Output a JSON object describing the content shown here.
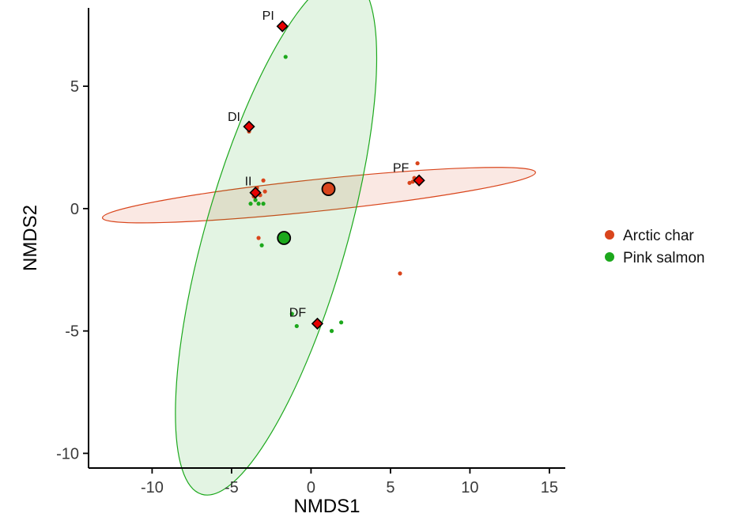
{
  "chart_data": {
    "type": "scatter",
    "title": "",
    "xlabel": "NMDS1",
    "ylabel": "NMDS2",
    "xlim": [
      -14,
      16
    ],
    "ylim": [
      -10.6,
      8.2
    ],
    "x_ticks": [
      -10,
      -5,
      0,
      5,
      10,
      15
    ],
    "x_tick_labels": [
      "-10",
      "-5",
      "0",
      "5",
      "10",
      "15"
    ],
    "y_ticks": [
      -10,
      -5,
      0,
      5
    ],
    "y_tick_labels": [
      "-10",
      "-5",
      "0",
      "5"
    ],
    "grid": false,
    "legend_position": "right",
    "series": [
      {
        "name": "Arctic char",
        "color": "#d9451c",
        "points": [
          {
            "x": -3.9,
            "y": 3.15
          },
          {
            "x": -3.5,
            "y": 0.7
          },
          {
            "x": -3.4,
            "y": 0.85
          },
          {
            "x": -3.2,
            "y": 0.55
          },
          {
            "x": -3.0,
            "y": 1.15
          },
          {
            "x": -2.9,
            "y": 0.7
          },
          {
            "x": -3.6,
            "y": 0.5
          },
          {
            "x": -3.3,
            "y": -1.2
          },
          {
            "x": 6.2,
            "y": 1.05
          },
          {
            "x": 6.5,
            "y": 1.25
          },
          {
            "x": 6.7,
            "y": 1.85
          },
          {
            "x": 6.9,
            "y": 1.2
          },
          {
            "x": 6.4,
            "y": 1.1
          },
          {
            "x": 5.6,
            "y": -2.65
          }
        ],
        "centroid": {
          "x": 1.1,
          "y": 0.8
        },
        "ellipse": {
          "cx": 0.5,
          "cy": 0.55,
          "rx": 27.4,
          "ry": 2.6,
          "angle_deg": 6
        }
      },
      {
        "name": "Pink salmon",
        "color": "#1ca81c",
        "points": [
          {
            "x": -1.6,
            "y": 6.2
          },
          {
            "x": -3.8,
            "y": 0.2
          },
          {
            "x": -3.3,
            "y": 0.2
          },
          {
            "x": -3.5,
            "y": 0.35
          },
          {
            "x": -3.0,
            "y": 0.2
          },
          {
            "x": -3.1,
            "y": -1.5
          },
          {
            "x": -0.9,
            "y": -4.8
          },
          {
            "x": 1.3,
            "y": -5.0
          },
          {
            "x": 1.9,
            "y": -4.65
          },
          {
            "x": -1.2,
            "y": -4.3
          }
        ],
        "centroid": {
          "x": -1.7,
          "y": -1.2
        },
        "ellipse": {
          "cx": -2.2,
          "cy": -1.1,
          "rx": 8.9,
          "ry": 44.0,
          "angle_deg": -16
        }
      }
    ],
    "centroids": [
      {
        "label": "PI",
        "x": -1.8,
        "y": 7.45,
        "color": "#e60000"
      },
      {
        "label": "DI",
        "x": -3.9,
        "y": 3.35,
        "color": "#e60000"
      },
      {
        "label": "II",
        "x": -3.5,
        "y": 0.65,
        "color": "#e60000"
      },
      {
        "label": "PF",
        "x": 6.8,
        "y": 1.15,
        "color": "#e60000"
      },
      {
        "label": "DF",
        "x": 0.4,
        "y": -4.7,
        "color": "#e60000"
      }
    ],
    "legend": [
      {
        "label": "Arctic char",
        "color": "#d9451c"
      },
      {
        "label": "Pink salmon",
        "color": "#1ca81c"
      }
    ]
  }
}
